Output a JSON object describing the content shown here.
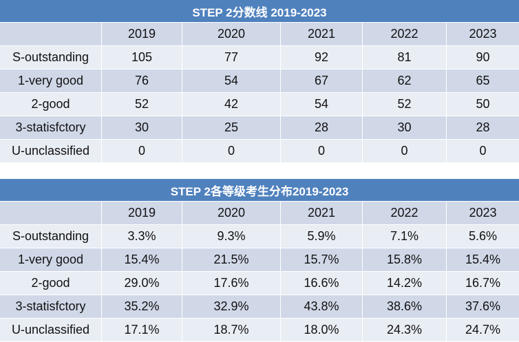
{
  "table1": {
    "title": "STEP 2分数线 2019-2023",
    "columns": [
      "",
      "2019",
      "2020",
      "2021",
      "2022",
      "2023"
    ],
    "rows": [
      [
        "S-outstanding",
        "105",
        "77",
        "92",
        "81",
        "90"
      ],
      [
        "1-very good",
        "76",
        "54",
        "67",
        "62",
        "65"
      ],
      [
        "2-good",
        "52",
        "42",
        "54",
        "52",
        "50"
      ],
      [
        "3-statisfctory",
        "30",
        "25",
        "28",
        "30",
        "28"
      ],
      [
        "U-unclassified",
        "0",
        "0",
        "0",
        "0",
        "0"
      ]
    ]
  },
  "table2": {
    "title": "STEP 2各等级考生分布2019-2023",
    "columns": [
      "",
      "2019",
      "2020",
      "2021",
      "2022",
      "2023"
    ],
    "rows": [
      [
        "S-outstanding",
        "3.3%",
        "9.3%",
        "5.9%",
        "7.1%",
        "5.6%"
      ],
      [
        "1-very good",
        "15.4%",
        "21.5%",
        "15.7%",
        "15.8%",
        "15.4%"
      ],
      [
        "2-good",
        "29.0%",
        "17.6%",
        "16.6%",
        "14.2%",
        "16.7%"
      ],
      [
        "3-statisfctory",
        "35.2%",
        "32.9%",
        "43.8%",
        "38.6%",
        "37.6%"
      ],
      [
        "U-unclassified",
        "17.1%",
        "18.7%",
        "18.0%",
        "24.3%",
        "24.7%"
      ]
    ]
  },
  "colors": {
    "header": "#4f81bd",
    "row_dark": "#d0d8e8",
    "row_light": "#e9edf4"
  }
}
